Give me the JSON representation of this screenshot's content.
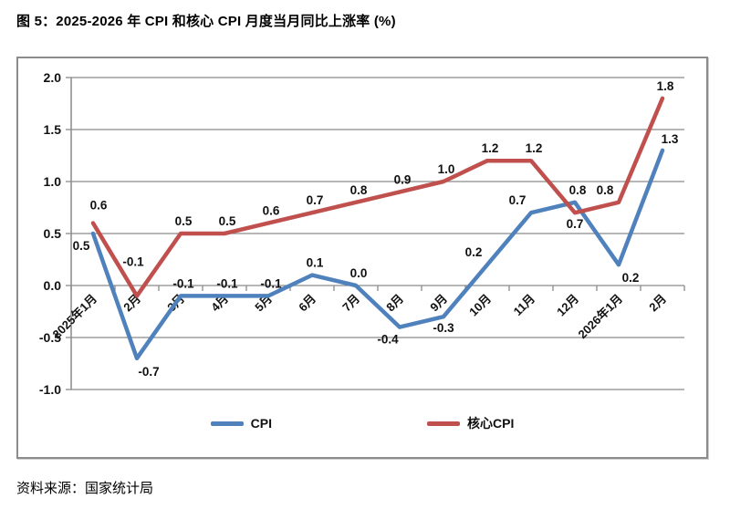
{
  "title": "图 5：2025-2026 年 CPI 和核心 CPI 月度当月同比上涨率 (%)",
  "source": "资料来源：国家统计局",
  "legend": [
    {
      "label": "CPI",
      "color": "#4F81BD"
    },
    {
      "label": "核心CPI",
      "color": "#C0504D"
    }
  ],
  "colors": {
    "cpi_line": "#4F81BD",
    "core_cpi_line": "#C0504D",
    "gridline": "#8a8a8a",
    "text": "#111111"
  },
  "chart_data": {
    "type": "line",
    "title": "图 5：2025-2026 年 CPI 和核心 CPI 月度当月同比上涨率 (%)",
    "categories": [
      "2025年1月",
      "2月",
      "3月",
      "4月",
      "5月",
      "6月",
      "7月",
      "8月",
      "9月",
      "10月",
      "11月",
      "12月",
      "2026年1月",
      "2月"
    ],
    "y_ticks": [
      "2.0",
      "1.5",
      "1.0",
      "0.5",
      "0.0",
      "-0.5",
      "-1.0"
    ],
    "ylim": [
      -1.0,
      2.0
    ],
    "grid": true,
    "legend_position": "bottom",
    "xlabel": "",
    "ylabel": "",
    "series": [
      {
        "name": "CPI",
        "color": "#4F81BD",
        "values": [
          0.5,
          -0.7,
          -0.1,
          -0.1,
          -0.1,
          0.1,
          0.0,
          -0.4,
          -0.3,
          0.2,
          0.7,
          0.8,
          0.2,
          1.3
        ],
        "label_placements": [
          "below-left",
          "below-right",
          "above",
          "above",
          "above",
          "above",
          "above",
          "below-left",
          "below",
          "above-left",
          "above-left",
          "above",
          "below-right",
          "above-right"
        ]
      },
      {
        "name": "核心CPI",
        "color": "#C0504D",
        "values": [
          0.6,
          -0.1,
          0.5,
          0.5,
          0.6,
          0.7,
          0.8,
          0.9,
          1.0,
          1.2,
          1.2,
          0.7,
          0.8,
          1.8
        ],
        "label_placements": [
          "above-high",
          "above-far",
          "above",
          "above",
          "above",
          "above",
          "above",
          "above",
          "above",
          "above",
          "above",
          "below",
          "above-left",
          "above"
        ]
      }
    ]
  }
}
